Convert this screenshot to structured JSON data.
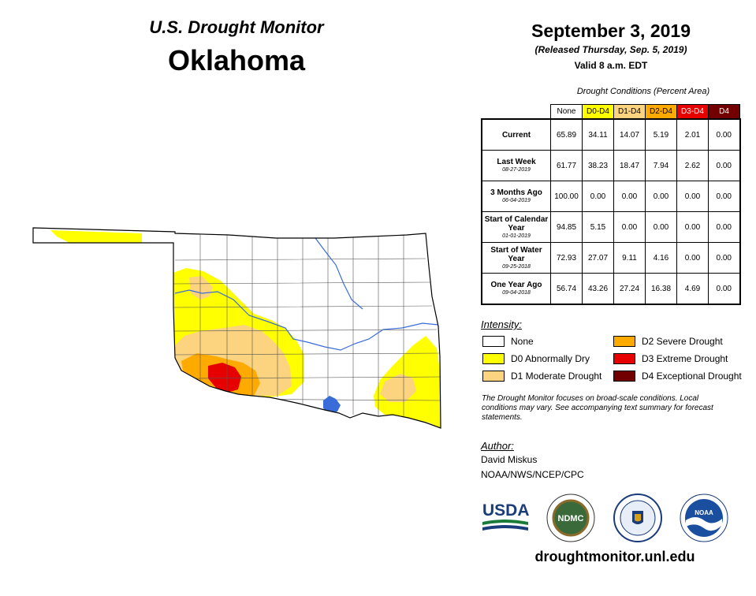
{
  "header": {
    "title": "U.S. Drought Monitor",
    "state": "Oklahoma"
  },
  "date_block": {
    "date": "September 3, 2019",
    "released": "(Released Thursday, Sep. 5, 2019)",
    "valid": "Valid 8 a.m. EDT"
  },
  "table": {
    "caption": "Drought Conditions (Percent Area)",
    "columns": [
      {
        "label": "None",
        "color": "#ffffff",
        "text_color": "#000000"
      },
      {
        "label": "D0-D4",
        "color": "#ffff00",
        "text_color": "#000000"
      },
      {
        "label": "D1-D4",
        "color": "#fcd37f",
        "text_color": "#000000"
      },
      {
        "label": "D2-D4",
        "color": "#ffaa00",
        "text_color": "#000000"
      },
      {
        "label": "D3-D4",
        "color": "#e60000",
        "text_color": "#ffffff"
      },
      {
        "label": "D4",
        "color": "#730000",
        "text_color": "#ffffff"
      }
    ],
    "rows": [
      {
        "label": "Current",
        "sub": "",
        "values": [
          "65.89",
          "34.11",
          "14.07",
          "5.19",
          "2.01",
          "0.00"
        ]
      },
      {
        "label": "Last Week",
        "sub": "08-27-2019",
        "values": [
          "61.77",
          "38.23",
          "18.47",
          "7.94",
          "2.62",
          "0.00"
        ]
      },
      {
        "label": "3 Months Ago",
        "sub": "06-04-2019",
        "values": [
          "100.00",
          "0.00",
          "0.00",
          "0.00",
          "0.00",
          "0.00"
        ]
      },
      {
        "label": "Start of Calendar Year",
        "sub": "01-01-2019",
        "values": [
          "94.85",
          "5.15",
          "0.00",
          "0.00",
          "0.00",
          "0.00"
        ]
      },
      {
        "label": "Start of Water Year",
        "sub": "09-25-2018",
        "values": [
          "72.93",
          "27.07",
          "9.11",
          "4.16",
          "0.00",
          "0.00"
        ]
      },
      {
        "label": "One Year Ago",
        "sub": "09-04-2018",
        "values": [
          "56.74",
          "43.26",
          "27.24",
          "16.38",
          "4.69",
          "0.00"
        ]
      }
    ]
  },
  "legend": {
    "heading": "Intensity:",
    "items": [
      {
        "label": "None",
        "color": "#ffffff"
      },
      {
        "label": "D0 Abnormally Dry",
        "color": "#ffff00"
      },
      {
        "label": "D1 Moderate Drought",
        "color": "#fcd37f"
      },
      {
        "label": "D2 Severe Drought",
        "color": "#ffaa00"
      },
      {
        "label": "D3 Extreme Drought",
        "color": "#e60000"
      },
      {
        "label": "D4 Exceptional Drought",
        "color": "#730000"
      }
    ]
  },
  "note": "The Drought Monitor focuses on broad-scale conditions. Local conditions may vary. See accompanying text summary for forecast statements.",
  "author": {
    "heading": "Author:",
    "name": "David Miskus",
    "org": "NOAA/NWS/NCEP/CPC"
  },
  "logos": {
    "usda": "USDA",
    "ndmc": "NDMC",
    "noaa": "NOAA"
  },
  "url": "droughtmonitor.unl.edu",
  "map_colors": {
    "none": "#ffffff",
    "d0": "#ffff00",
    "d1": "#fcd37f",
    "d2": "#ffaa00",
    "d3": "#e60000",
    "d4": "#730000",
    "water": "#3a6cd9",
    "border": "#000000"
  }
}
